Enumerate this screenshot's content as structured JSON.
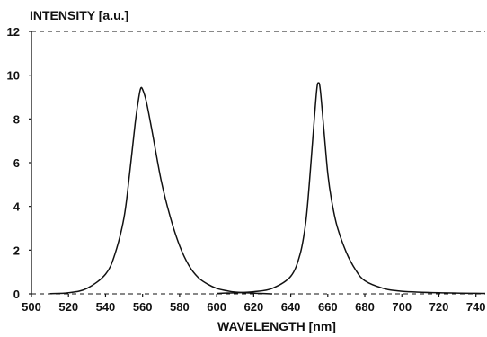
{
  "chart_data": {
    "type": "line",
    "ylabel": "INTENSITY [a.u.]",
    "xlabel": "WAVELENGTH  [nm]",
    "xlim": [
      500,
      745
    ],
    "ylim": [
      0,
      12
    ],
    "xticks": [
      500,
      520,
      540,
      560,
      580,
      600,
      620,
      640,
      660,
      680,
      700,
      720,
      740
    ],
    "yticks": [
      0,
      2,
      4,
      6,
      8,
      10,
      12
    ],
    "grid": false,
    "series": [
      {
        "x": [
          510,
          520,
          530,
          540,
          545,
          550,
          553,
          556,
          558,
          559,
          560,
          562,
          565,
          570,
          575,
          580,
          585,
          590,
          595,
          600,
          605,
          610,
          620,
          630
        ],
        "y": [
          0.01,
          0.05,
          0.25,
          0.9,
          1.8,
          3.5,
          5.5,
          7.8,
          9.0,
          9.4,
          9.35,
          8.8,
          7.5,
          5.2,
          3.5,
          2.2,
          1.3,
          0.75,
          0.45,
          0.25,
          0.15,
          0.08,
          0.03,
          0.0
        ]
      },
      {
        "x": [
          600,
          610,
          620,
          630,
          640,
          645,
          648,
          650,
          652,
          654,
          655,
          656,
          658,
          660,
          662,
          665,
          670,
          675,
          680,
          690,
          700,
          720,
          745
        ],
        "y": [
          0.02,
          0.05,
          0.1,
          0.25,
          0.8,
          1.8,
          3.2,
          5.0,
          7.2,
          9.3,
          9.65,
          9.3,
          7.4,
          5.5,
          4.3,
          3.1,
          1.9,
          1.1,
          0.6,
          0.25,
          0.12,
          0.05,
          0.02
        ]
      }
    ]
  }
}
